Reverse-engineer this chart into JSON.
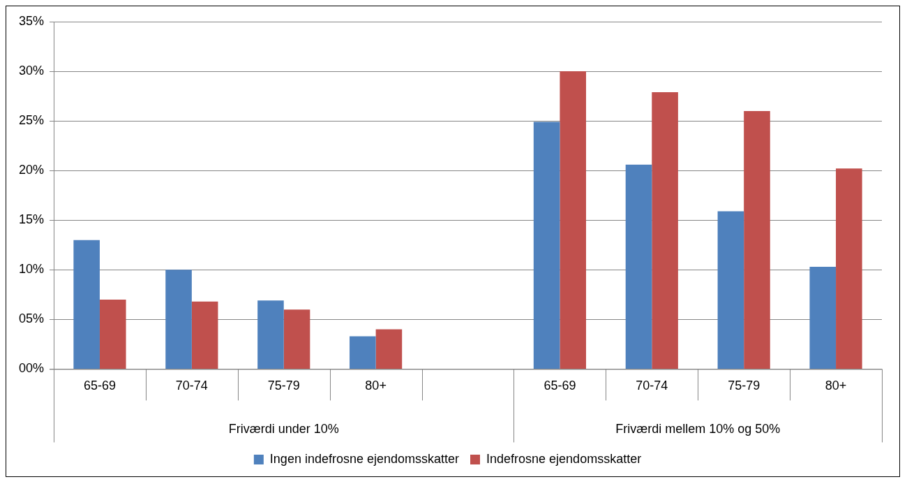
{
  "chart_data": {
    "type": "bar",
    "categories": [
      "65-69",
      "70-74",
      "75-79",
      "80+",
      null,
      "65-69",
      "70-74",
      "75-79",
      "80+"
    ],
    "series": [
      {
        "name": "Ingen indefrosne ejendomsskatter",
        "color": "#4f81bd",
        "values": [
          13.0,
          10.0,
          6.9,
          3.3,
          null,
          24.9,
          20.6,
          15.9,
          10.3
        ]
      },
      {
        "name": "Indefrosne ejendomsskatter",
        "color": "#c0504d",
        "values": [
          7.0,
          6.8,
          6.0,
          4.0,
          null,
          30.0,
          27.9,
          26.0,
          20.2
        ]
      }
    ],
    "ylim": [
      0,
      35
    ],
    "yticks": [
      {
        "value": 0,
        "label": "00%"
      },
      {
        "value": 5,
        "label": "05%"
      },
      {
        "value": 10,
        "label": "10%"
      },
      {
        "value": 15,
        "label": "15%"
      },
      {
        "value": 20,
        "label": "20%"
      },
      {
        "value": 25,
        "label": "25%"
      },
      {
        "value": 30,
        "label": "30%"
      },
      {
        "value": 35,
        "label": "35%"
      }
    ],
    "annotations": [
      "Friværdi under 10%",
      "Friværdi mellem 10% og 50%"
    ],
    "grid": "y",
    "legend": "bottom"
  }
}
